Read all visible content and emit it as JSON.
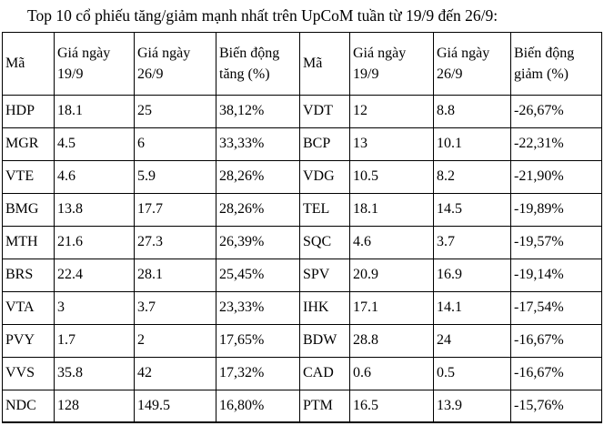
{
  "title": "Top 10 cổ phiếu tăng/giảm mạnh nhất trên UpCoM tuần từ 19/9 đến 26/9:",
  "colors": {
    "text": "#000000",
    "background": "#ffffff",
    "table_border": "#000000"
  },
  "table": {
    "headers": [
      "Mã",
      "Giá ngày 19/9",
      "Giá ngày 26/9",
      "Biến động tăng (%)",
      "Mã",
      "Giá ngày 19/9",
      "Giá ngày 26/9",
      "Biến động giảm (%)"
    ],
    "rows": [
      [
        "HDP",
        "18.1",
        "25",
        "38,12%",
        "VDT",
        "12",
        "8.8",
        "-26,67%"
      ],
      [
        "MGR",
        "4.5",
        "6",
        "33,33%",
        "BCP",
        "13",
        "10.1",
        "-22,31%"
      ],
      [
        "VTE",
        "4.6",
        "5.9",
        "28,26%",
        "VDG",
        "10.5",
        "8.2",
        "-21,90%"
      ],
      [
        "BMG",
        "13.8",
        "17.7",
        "28,26%",
        "TEL",
        "18.1",
        "14.5",
        "-19,89%"
      ],
      [
        "MTH",
        "21.6",
        "27.3",
        "26,39%",
        "SQC",
        "4.6",
        "3.7",
        "-19,57%"
      ],
      [
        "BRS",
        "22.4",
        "28.1",
        "25,45%",
        "SPV",
        "20.9",
        "16.9",
        "-19,14%"
      ],
      [
        "VTA",
        "3",
        "3.7",
        "23,33%",
        "IHK",
        "17.1",
        "14.1",
        "-17,54%"
      ],
      [
        "PVY",
        "1.7",
        "2",
        "17,65%",
        "BDW",
        "28.8",
        "24",
        "-16,67%"
      ],
      [
        "VVS",
        "35.8",
        "42",
        "17,32%",
        "CAD",
        "0.6",
        "0.5",
        "-16,67%"
      ],
      [
        "NDC",
        "128",
        "149.5",
        "16,80%",
        "PTM",
        "16.5",
        "13.9",
        "-15,76%"
      ]
    ]
  }
}
